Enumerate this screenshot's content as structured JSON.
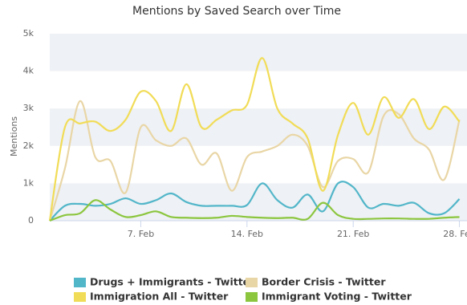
{
  "chart_data": {
    "type": "line",
    "title": "Mentions by Saved Search over Time",
    "y_label": "Mentions",
    "x": [
      1,
      2,
      3,
      4,
      5,
      6,
      7,
      8,
      9,
      10,
      11,
      12,
      13,
      14,
      15,
      16,
      17,
      18,
      19,
      20,
      21,
      22,
      23,
      24,
      25,
      26,
      27,
      28
    ],
    "xlim": [
      1,
      28.5
    ],
    "xticks": [
      {
        "value": 7,
        "label": "7. Feb"
      },
      {
        "value": 14,
        "label": "14. Feb"
      },
      {
        "value": 21,
        "label": "21. Feb"
      },
      {
        "value": 28,
        "label": "28. Feb"
      }
    ],
    "ylim": [
      0,
      5000
    ],
    "yticks": [
      0,
      {
        "value": 1000,
        "label": "1k"
      },
      {
        "value": 2000,
        "label": "2k"
      },
      {
        "value": 3000,
        "label": "3k"
      },
      {
        "value": 4000,
        "label": "4k"
      },
      {
        "value": 5000,
        "label": "5k"
      }
    ],
    "alternate_bands": true,
    "series": [
      {
        "name": "Drugs + Immigrants - Twitter",
        "color": "#52b6c9",
        "values": [
          0,
          400,
          450,
          400,
          450,
          600,
          450,
          550,
          730,
          500,
          400,
          400,
          400,
          420,
          1000,
          550,
          350,
          700,
          250,
          1000,
          900,
          350,
          450,
          400,
          480,
          200,
          200,
          580
        ]
      },
      {
        "name": "Border Crisis - Twitter",
        "color": "#e9d6a6",
        "values": [
          0,
          1400,
          3200,
          1700,
          1600,
          750,
          2500,
          2150,
          2000,
          2200,
          1500,
          1800,
          800,
          1700,
          1850,
          2000,
          2300,
          2000,
          900,
          1600,
          1650,
          1300,
          2800,
          2850,
          2200,
          1900,
          1100,
          2700
        ]
      },
      {
        "name": "Immigration All - Twitter",
        "color": "#f1dc57",
        "values": [
          0,
          2500,
          2600,
          2650,
          2400,
          2700,
          3450,
          3200,
          2400,
          3650,
          2500,
          2700,
          2950,
          3100,
          4350,
          3000,
          2600,
          2200,
          800,
          2300,
          3150,
          2300,
          3300,
          2750,
          3250,
          2450,
          3050,
          2650
        ]
      },
      {
        "name": "Immigrant Voting - Twitter",
        "color": "#8cc63f",
        "values": [
          0,
          150,
          200,
          550,
          300,
          100,
          150,
          250,
          100,
          80,
          70,
          80,
          130,
          100,
          80,
          70,
          80,
          50,
          480,
          150,
          50,
          50,
          60,
          60,
          50,
          50,
          80,
          100
        ]
      }
    ]
  }
}
